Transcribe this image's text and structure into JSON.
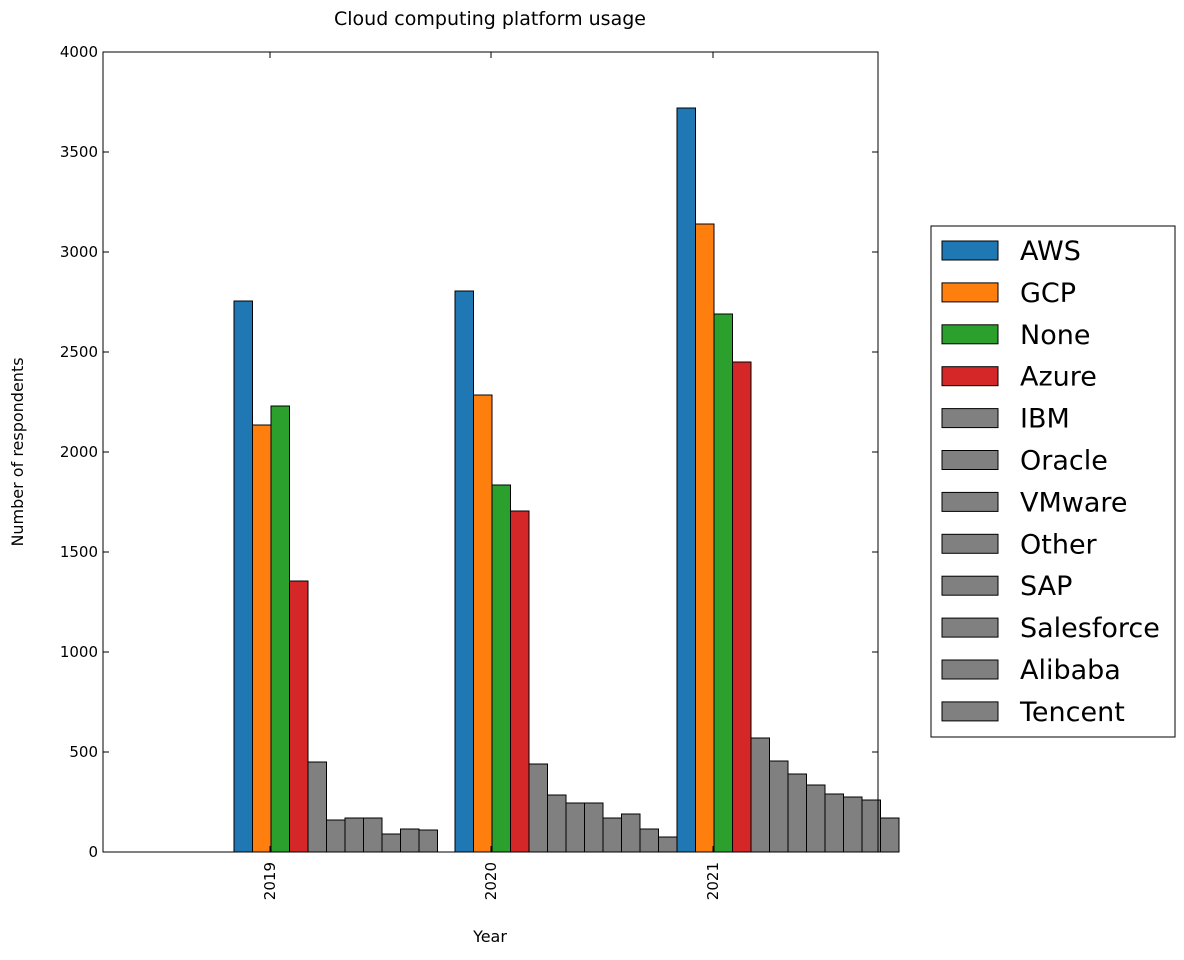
{
  "chart_data": {
    "type": "bar",
    "title": "Cloud computing platform usage",
    "xlabel": "Year",
    "ylabel": "Number of respondents",
    "ylim": [
      0,
      4000
    ],
    "yticks": [
      0,
      500,
      1000,
      1500,
      2000,
      2500,
      3000,
      3500,
      4000
    ],
    "categories": [
      "2019",
      "2020",
      "2021"
    ],
    "legend_position": "right",
    "grid": false,
    "series": [
      {
        "name": "AWS",
        "color": "#1f77b4",
        "values": [
          2755,
          2805,
          3720
        ]
      },
      {
        "name": "GCP",
        "color": "#ff7f0e",
        "values": [
          2135,
          2285,
          3140
        ]
      },
      {
        "name": "None",
        "color": "#2ca02c",
        "values": [
          2230,
          1835,
          2690
        ]
      },
      {
        "name": "Azure",
        "color": "#d62728",
        "values": [
          1355,
          1705,
          2450
        ]
      },
      {
        "name": "IBM",
        "color": "#808080",
        "values": [
          450,
          440,
          570
        ]
      },
      {
        "name": "Oracle",
        "color": "#808080",
        "values": [
          160,
          285,
          455
        ]
      },
      {
        "name": "VMware",
        "color": "#808080",
        "values": [
          170,
          245,
          390
        ]
      },
      {
        "name": "Other",
        "color": "#808080",
        "values": [
          170,
          245,
          335
        ]
      },
      {
        "name": "SAP",
        "color": "#808080",
        "values": [
          90,
          170,
          290
        ]
      },
      {
        "name": "Salesforce",
        "color": "#808080",
        "values": [
          115,
          190,
          275
        ]
      },
      {
        "name": "Alibaba",
        "color": "#808080",
        "values": [
          110,
          115,
          260
        ]
      },
      {
        "name": "Tencent",
        "color": "#808080",
        "values": [
          0,
          75,
          170
        ]
      }
    ]
  }
}
